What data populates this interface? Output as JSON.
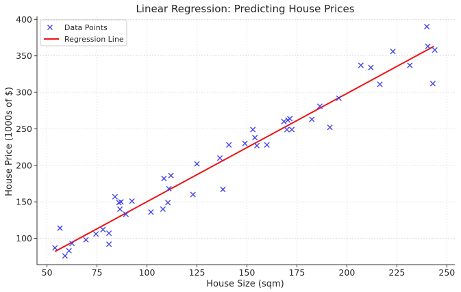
{
  "chart_data": {
    "type": "scatter",
    "title": "Linear Regression: Predicting House Prices",
    "xlabel": "House Size (sqm)",
    "ylabel": "House Price (1000s of $)",
    "xlim": [
      45,
      254
    ],
    "ylim": [
      64,
      404
    ],
    "xticks": [
      50,
      75,
      100,
      125,
      150,
      175,
      200,
      225,
      250
    ],
    "yticks": [
      100,
      150,
      200,
      250,
      300,
      350,
      400
    ],
    "grid": true,
    "legend_position": "top-left",
    "series": [
      {
        "name": "Data Points",
        "kind": "scatter",
        "marker": "x",
        "color": "#4444ee",
        "points": [
          [
            54,
            87
          ],
          [
            56.5,
            114
          ],
          [
            59,
            76
          ],
          [
            61,
            83
          ],
          [
            62.5,
            93
          ],
          [
            69.5,
            98
          ],
          [
            74.5,
            106
          ],
          [
            78,
            112
          ],
          [
            81,
            107
          ],
          [
            81,
            92
          ],
          [
            84,
            157
          ],
          [
            86,
            149
          ],
          [
            86.5,
            140
          ],
          [
            87,
            150
          ],
          [
            89.5,
            133
          ],
          [
            92.5,
            151
          ],
          [
            102,
            136
          ],
          [
            108,
            140
          ],
          [
            108.5,
            182
          ],
          [
            110.5,
            149
          ],
          [
            111,
            168
          ],
          [
            112,
            186
          ],
          [
            123,
            160
          ],
          [
            125,
            202
          ],
          [
            136.5,
            210
          ],
          [
            138,
            167
          ],
          [
            141,
            228
          ],
          [
            149,
            230
          ],
          [
            153,
            249
          ],
          [
            154,
            238
          ],
          [
            155,
            227
          ],
          [
            160,
            228
          ],
          [
            168.5,
            260
          ],
          [
            170,
            249
          ],
          [
            170.5,
            262
          ],
          [
            171.5,
            264
          ],
          [
            172.5,
            249
          ],
          [
            182.5,
            263
          ],
          [
            186.5,
            281
          ],
          [
            191.5,
            252
          ],
          [
            196,
            292
          ],
          [
            207,
            337
          ],
          [
            212,
            334
          ],
          [
            216.5,
            311
          ],
          [
            223,
            356
          ],
          [
            231.5,
            337
          ],
          [
            240,
            390
          ],
          [
            240.5,
            363
          ],
          [
            243,
            312
          ],
          [
            244,
            358
          ]
        ]
      },
      {
        "name": "Regression Line",
        "kind": "line",
        "color": "#ee1111",
        "points": [
          [
            54,
            82
          ],
          [
            243.5,
            363
          ]
        ]
      }
    ]
  }
}
